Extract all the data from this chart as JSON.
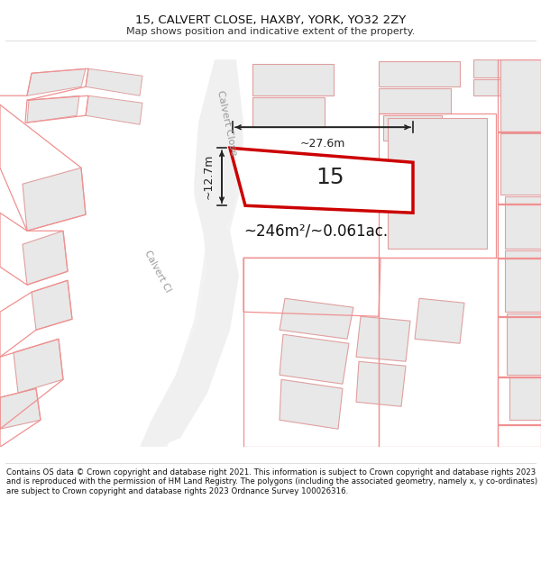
{
  "title": "15, CALVERT CLOSE, HAXBY, YORK, YO32 2ZY",
  "subtitle": "Map shows position and indicative extent of the property.",
  "footer": "Contains OS data © Crown copyright and database right 2021. This information is subject to Crown copyright and database rights 2023 and is reproduced with the permission of HM Land Registry. The polygons (including the associated geometry, namely x, y co-ordinates) are subject to Crown copyright and database rights 2023 Ordnance Survey 100026316.",
  "area_label": "~246m²/~0.061ac.",
  "number_label": "15",
  "dim_width": "~27.6m",
  "dim_height": "~12.7m",
  "street_label_1": "Calvert Close",
  "street_label_2": "Calvert Cl",
  "map_bg": "#ffffff",
  "building_fill": "#e8e8e8",
  "building_outline": "#e0a0a0",
  "road_fill": "#f0f0f0",
  "road_outline": "#cccccc",
  "plot_color": "#cc0000",
  "dim_color": "#222222",
  "street_color": "#999999",
  "title_fontsize": 9.5,
  "subtitle_fontsize": 8.0,
  "footer_fontsize": 6.2
}
